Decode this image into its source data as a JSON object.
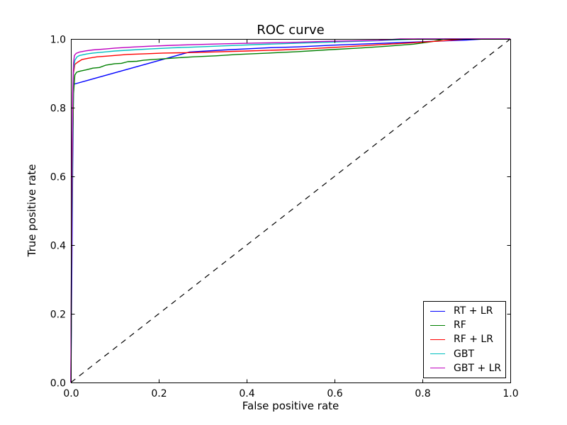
{
  "figure": {
    "background": "#ffffff",
    "frame_color": "#000000"
  },
  "chart_data": {
    "type": "line",
    "title": "ROC curve",
    "xlabel": "False positive rate",
    "ylabel": "True positive rate",
    "xlim": [
      0.0,
      1.0
    ],
    "ylim": [
      0.0,
      1.0
    ],
    "xticks": [
      "0.0",
      "0.2",
      "0.4",
      "0.6",
      "0.8",
      "1.0"
    ],
    "yticks": [
      "0.0",
      "0.2",
      "0.4",
      "0.6",
      "0.8",
      "1.0"
    ],
    "grid": false,
    "legend_position": "lower right",
    "reference_line": {
      "name": "chance-diagonal",
      "color": "#000000",
      "style": "dashed",
      "points": [
        [
          0,
          0
        ],
        [
          1,
          1
        ]
      ]
    },
    "series": [
      {
        "name": "RT + LR",
        "color": "#0000ff",
        "style": "solid",
        "points": [
          [
            0,
            0
          ],
          [
            0.002,
            0.28
          ],
          [
            0.004,
            0.62
          ],
          [
            0.006,
            0.868
          ],
          [
            0.27,
            0.962
          ],
          [
            0.35,
            0.968
          ],
          [
            0.45,
            0.9745
          ],
          [
            0.516,
            0.977
          ],
          [
            0.6,
            0.982
          ],
          [
            0.7,
            0.987
          ],
          [
            0.8,
            0.992
          ],
          [
            0.9,
            0.997
          ],
          [
            0.94,
            1
          ],
          [
            1,
            1
          ]
        ]
      },
      {
        "name": "RF",
        "color": "#008000",
        "style": "solid",
        "points": [
          [
            0,
            0
          ],
          [
            0.002,
            0.42
          ],
          [
            0.004,
            0.7
          ],
          [
            0.006,
            0.84
          ],
          [
            0.009,
            0.895
          ],
          [
            0.013,
            0.903
          ],
          [
            0.02,
            0.906
          ],
          [
            0.035,
            0.91
          ],
          [
            0.05,
            0.915
          ],
          [
            0.065,
            0.917
          ],
          [
            0.08,
            0.924
          ],
          [
            0.1,
            0.928
          ],
          [
            0.115,
            0.929
          ],
          [
            0.13,
            0.934
          ],
          [
            0.15,
            0.935
          ],
          [
            0.165,
            0.938
          ],
          [
            0.185,
            0.94
          ],
          [
            0.21,
            0.942
          ],
          [
            0.24,
            0.945
          ],
          [
            0.28,
            0.948
          ],
          [
            0.33,
            0.951
          ],
          [
            0.38,
            0.955
          ],
          [
            0.45,
            0.959
          ],
          [
            0.516,
            0.963
          ],
          [
            0.58,
            0.968
          ],
          [
            0.65,
            0.973
          ],
          [
            0.72,
            0.979
          ],
          [
            0.78,
            0.985
          ],
          [
            0.82,
            0.992
          ],
          [
            0.85,
            1
          ],
          [
            1,
            1
          ]
        ]
      },
      {
        "name": "RF + LR",
        "color": "#ff0000",
        "style": "solid",
        "points": [
          [
            0,
            0
          ],
          [
            0.002,
            0.5
          ],
          [
            0.004,
            0.78
          ],
          [
            0.006,
            0.9
          ],
          [
            0.009,
            0.926
          ],
          [
            0.015,
            0.932
          ],
          [
            0.025,
            0.94
          ],
          [
            0.04,
            0.944
          ],
          [
            0.06,
            0.948
          ],
          [
            0.08,
            0.95
          ],
          [
            0.1,
            0.952
          ],
          [
            0.13,
            0.955
          ],
          [
            0.17,
            0.957
          ],
          [
            0.21,
            0.959
          ],
          [
            0.26,
            0.96
          ],
          [
            0.32,
            0.962
          ],
          [
            0.4,
            0.965
          ],
          [
            0.48,
            0.968
          ],
          [
            0.55,
            0.972
          ],
          [
            0.62,
            0.977
          ],
          [
            0.7,
            0.983
          ],
          [
            0.78,
            0.989
          ],
          [
            0.85,
            0.995
          ],
          [
            0.9,
            1
          ],
          [
            1,
            1
          ]
        ]
      },
      {
        "name": "GBT",
        "color": "#00bfbf",
        "style": "solid",
        "points": [
          [
            0,
            0
          ],
          [
            0.002,
            0.52
          ],
          [
            0.004,
            0.8
          ],
          [
            0.006,
            0.91
          ],
          [
            0.009,
            0.938
          ],
          [
            0.014,
            0.948
          ],
          [
            0.02,
            0.952
          ],
          [
            0.035,
            0.956
          ],
          [
            0.05,
            0.959
          ],
          [
            0.08,
            0.9625
          ],
          [
            0.1,
            0.965
          ],
          [
            0.14,
            0.968
          ],
          [
            0.18,
            0.971
          ],
          [
            0.23,
            0.974
          ],
          [
            0.29,
            0.977
          ],
          [
            0.35,
            0.98
          ],
          [
            0.42,
            0.9835
          ],
          [
            0.5,
            0.987
          ],
          [
            0.57,
            0.99
          ],
          [
            0.64,
            0.9925
          ],
          [
            0.7,
            0.995
          ],
          [
            0.75,
            0.998
          ],
          [
            0.79,
            1
          ],
          [
            1,
            1
          ]
        ]
      },
      {
        "name": "GBT + LR",
        "color": "#bf00bf",
        "style": "solid",
        "points": [
          [
            0,
            0
          ],
          [
            0.002,
            0.58
          ],
          [
            0.004,
            0.84
          ],
          [
            0.006,
            0.93
          ],
          [
            0.008,
            0.952
          ],
          [
            0.012,
            0.958
          ],
          [
            0.02,
            0.962
          ],
          [
            0.035,
            0.9655
          ],
          [
            0.05,
            0.968
          ],
          [
            0.08,
            0.971
          ],
          [
            0.1,
            0.9735
          ],
          [
            0.14,
            0.9765
          ],
          [
            0.18,
            0.979
          ],
          [
            0.23,
            0.9815
          ],
          [
            0.29,
            0.984
          ],
          [
            0.35,
            0.986
          ],
          [
            0.42,
            0.988
          ],
          [
            0.5,
            0.99
          ],
          [
            0.57,
            0.9925
          ],
          [
            0.64,
            0.9945
          ],
          [
            0.7,
            0.996
          ],
          [
            0.75,
            1
          ],
          [
            1,
            1
          ]
        ]
      }
    ]
  }
}
